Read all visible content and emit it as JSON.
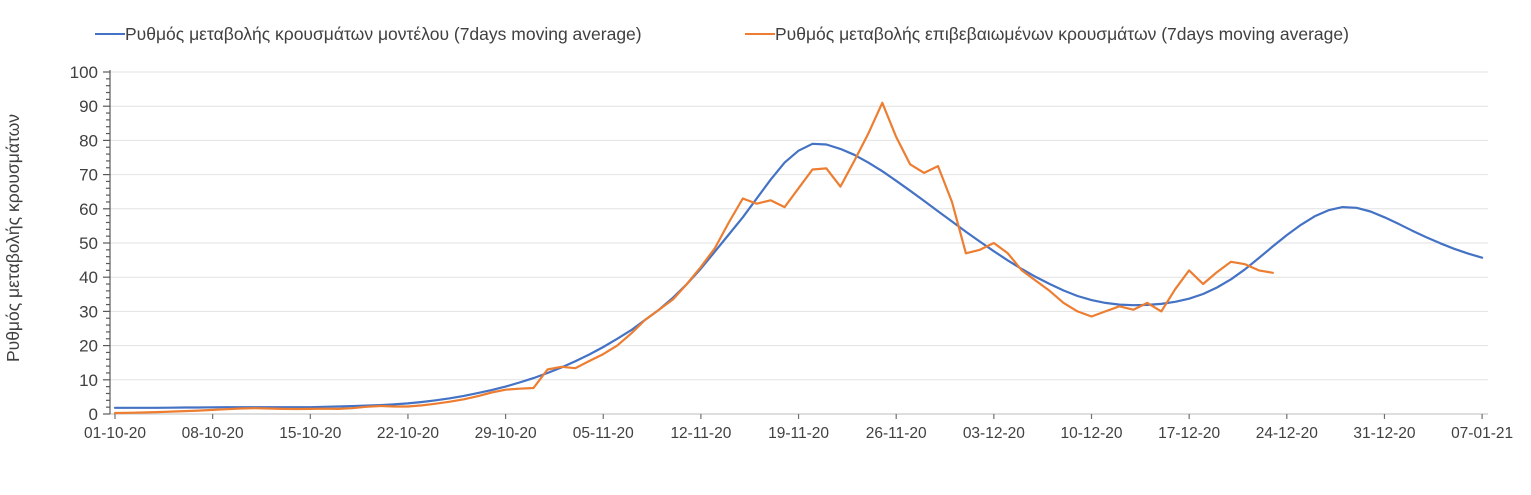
{
  "y_axis": {
    "title": "Ρυθμός μεταβολής κρουσμάτων",
    "min": 0,
    "max": 100,
    "major_step": 10,
    "minor_step": 2,
    "tick_labels": [
      "0",
      "10",
      "20",
      "30",
      "40",
      "50",
      "60",
      "70",
      "80",
      "90",
      "100"
    ]
  },
  "x_axis": {
    "tick_labels": [
      "01-10-20",
      "08-10-20",
      "15-10-20",
      "22-10-20",
      "29-10-20",
      "05-11-20",
      "12-11-20",
      "19-11-20",
      "26-11-20",
      "03-12-20",
      "10-12-20",
      "17-12-20",
      "24-12-20",
      "31-12-20",
      "07-01-21"
    ],
    "days_per_tick": 7
  },
  "colors": {
    "model_line": "#4472C4",
    "confirmed_line": "#ED7D31",
    "gridline": "#E2E2E2",
    "y_axis_line": "#595959",
    "x_axis_line": "#C9C9C9",
    "tick_mark": "#707070",
    "text": "#404040"
  },
  "chart_data": {
    "type": "line",
    "title": "",
    "xlabel": "",
    "ylabel": "Ρυθμός μεταβολής κρουσμάτων",
    "ylim": [
      0,
      100
    ],
    "grid": "horizontal",
    "legend_position": "top",
    "x_unit": "days since 01-10-2020, 1 point per day",
    "categories": [
      "01-10-20",
      "08-10-20",
      "15-10-20",
      "22-10-20",
      "29-10-20",
      "05-11-20",
      "12-11-20",
      "19-11-20",
      "26-11-20",
      "03-12-20",
      "10-12-20",
      "17-12-20",
      "24-12-20",
      "31-12-20",
      "07-01-21"
    ],
    "series": [
      {
        "name": "Ρυθμός μεταβολής κρουσμάτων μοντέλου (7days moving average)",
        "color": "#4472C4",
        "start_day": 0,
        "values": [
          1.8,
          1.8,
          1.8,
          1.8,
          1.85,
          1.9,
          1.9,
          1.95,
          2,
          2,
          2,
          2,
          2,
          2,
          2,
          2.1,
          2.2,
          2.3,
          2.45,
          2.6,
          2.8,
          3.1,
          3.5,
          4,
          4.6,
          5.3,
          6.1,
          7,
          8,
          9.2,
          10.5,
          12,
          13.6,
          15.4,
          17.4,
          19.6,
          22,
          24.5,
          27.5,
          30.5,
          34,
          38,
          42.5,
          47.5,
          52.5,
          57.5,
          63,
          68.5,
          73.5,
          77,
          79,
          78.8,
          77.5,
          75.8,
          73.5,
          71,
          68.2,
          65.3,
          62.3,
          59.3,
          56.3,
          53.3,
          50.4,
          47.6,
          44.9,
          42.4,
          40.1,
          38,
          36.1,
          34.5,
          33.3,
          32.5,
          32,
          31.8,
          31.9,
          32.2,
          32.8,
          33.7,
          35.1,
          37,
          39.4,
          42.3,
          45.6,
          49,
          52.3,
          55.3,
          57.8,
          59.6,
          60.5,
          60.3,
          59.2,
          57.5,
          55.6,
          53.6,
          51.7,
          49.9,
          48.3,
          46.9,
          45.7
        ]
      },
      {
        "name": "Ρυθμός μεταβολής επιβεβαιωμένων κρουσμάτων (7days moving average)",
        "color": "#ED7D31",
        "start_day": 0,
        "values": [
          0.3,
          0.35,
          0.45,
          0.55,
          0.7,
          0.85,
          1,
          1.2,
          1.4,
          1.6,
          1.7,
          1.6,
          1.5,
          1.45,
          1.5,
          1.55,
          1.5,
          1.7,
          2.1,
          2.35,
          2.2,
          2.2,
          2.5,
          3,
          3.6,
          4.3,
          5.2,
          6.3,
          7.1,
          7.4,
          7.6,
          13,
          13.8,
          13.4,
          15.5,
          17.5,
          20,
          23.5,
          27.5,
          30.5,
          33.5,
          38,
          43,
          48.5,
          56,
          63,
          61.5,
          62.5,
          60.5,
          66,
          71.5,
          71.8,
          66.5,
          74,
          82,
          91,
          81,
          73,
          70.5,
          72.5,
          62,
          47,
          48,
          50,
          47,
          42,
          39,
          36,
          32.5,
          30,
          28.5,
          30,
          31.5,
          30.5,
          32.5,
          30,
          36.5,
          42,
          38,
          41.5,
          44.5,
          43.8,
          42,
          41.3
        ]
      }
    ]
  }
}
